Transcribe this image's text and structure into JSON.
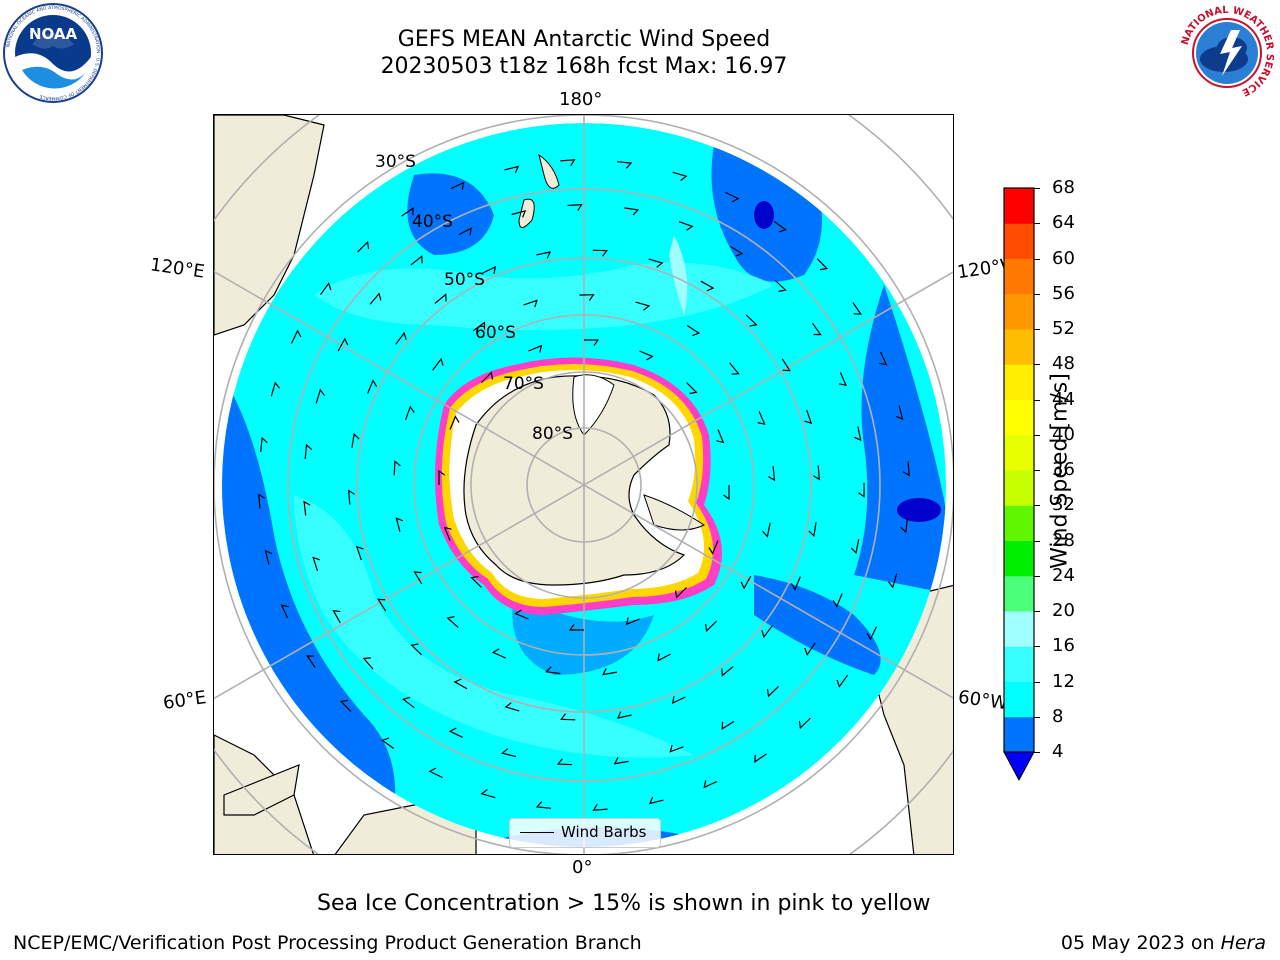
{
  "header": {
    "title_line1": "GEFS MEAN Antarctic Wind Speed",
    "title_line2": "20230503 t18z 168h fcst   Max: 16.97"
  },
  "logos": {
    "noaa_text": "NOAA",
    "noaa_ring_text": "NATIONAL OCEANIC AND ATMOSPHERIC ADMINISTRATION · U.S. DEPARTMENT OF COMMERCE",
    "nws_ring_text": "NATIONAL WEATHER SERVICE"
  },
  "map": {
    "projection": "south-polar-stereographic",
    "longitude_labels": {
      "top": "180°",
      "bottom": "0°",
      "upper_left": "120°E",
      "upper_right": "120°W",
      "lower_left": "60°E",
      "lower_right": "60°W"
    },
    "latitude_labels": [
      "30°S",
      "40°S",
      "50°S",
      "60°S",
      "70°S",
      "80°S"
    ],
    "legend_label": "Wind Barbs",
    "colors": {
      "ocean_4_8": "#0074ff",
      "ocean_8_12": "#00ffff",
      "ocean_12_16": "#38ffff",
      "ocean_16_20": "#a0ffff",
      "land": "#efedd9",
      "sea_ice_pink": "#ff3ec8",
      "sea_ice_yellow": "#ffd700",
      "grid": "#b0b0b0"
    }
  },
  "colorbar": {
    "label": "Wind Speed [m/s]",
    "ticks": [
      "4",
      "8",
      "12",
      "16",
      "20",
      "24",
      "28",
      "32",
      "36",
      "40",
      "44",
      "48",
      "52",
      "56",
      "60",
      "64",
      "68"
    ],
    "colors": [
      "#0074ff",
      "#00ffff",
      "#38ffff",
      "#a0ffff",
      "#4cff7a",
      "#00ef00",
      "#5ef700",
      "#c8ff00",
      "#e8ff00",
      "#ffff00",
      "#ffee00",
      "#ffbd00",
      "#ff9800",
      "#ff7800",
      "#ff4c00",
      "#ff0000"
    ],
    "extend_color": "#0000ff"
  },
  "caption": "Sea Ice Concentration > 15% is shown in pink to yellow",
  "footer": {
    "left": "NCEP/EMC/Verification Post Processing Product Generation Branch",
    "right_date": "05 May 2023 on ",
    "right_host": "Hera"
  }
}
